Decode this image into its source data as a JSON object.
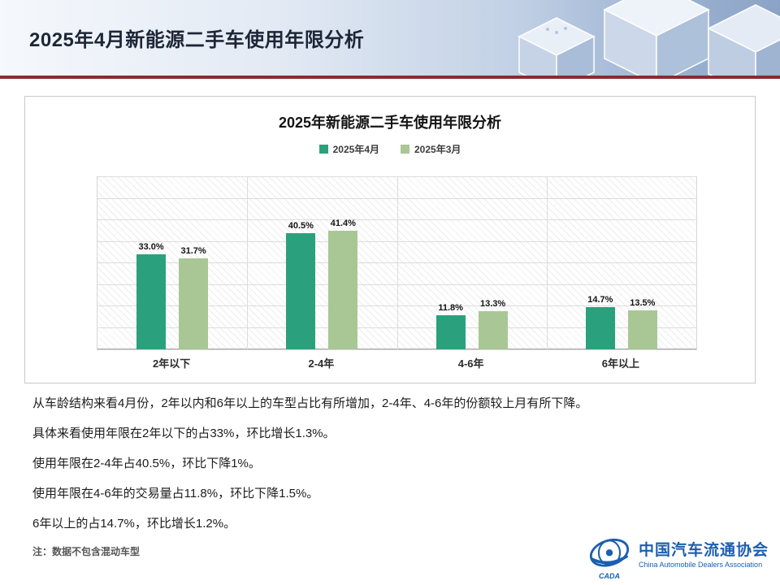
{
  "page": {
    "title": "2025年4月新能源二手车使用年限分析"
  },
  "chart_data": {
    "type": "bar",
    "title": "2025年新能源二手车使用年限分析",
    "categories": [
      "2年以下",
      "2-4年",
      "4-6年",
      "6年以上"
    ],
    "series": [
      {
        "name": "2025年4月",
        "color": "#2aa17c",
        "values": [
          33.0,
          40.5,
          11.8,
          14.7
        ]
      },
      {
        "name": "2025年3月",
        "color": "#a8c795",
        "values": [
          31.7,
          41.4,
          13.3,
          13.5
        ]
      }
    ],
    "ylim": [
      0,
      60
    ],
    "grid": true,
    "legend_position": "top",
    "value_suffix": "%",
    "xlabel": "",
    "ylabel": ""
  },
  "body": {
    "paragraphs": [
      "从车龄结构来看4月份，2年以内和6年以上的车型占比有所增加，2-4年、4-6年的份额较上月有所下降。",
      "具体来看使用年限在2年以下的占33%，环比增长1.3%。",
      "使用年限在2-4年占40.5%，环比下降1%。",
      "使用年限在4-6年的交易量占11.8%，环比下降1.5%。",
      "6年以上的占14.7%，环比增长1.2%。"
    ],
    "note": "注：数据不包含混动车型"
  },
  "footer": {
    "org_cn": "中国汽车流通协会",
    "org_en": "China Automobile Dealers Association",
    "logo_text": "CADA"
  }
}
